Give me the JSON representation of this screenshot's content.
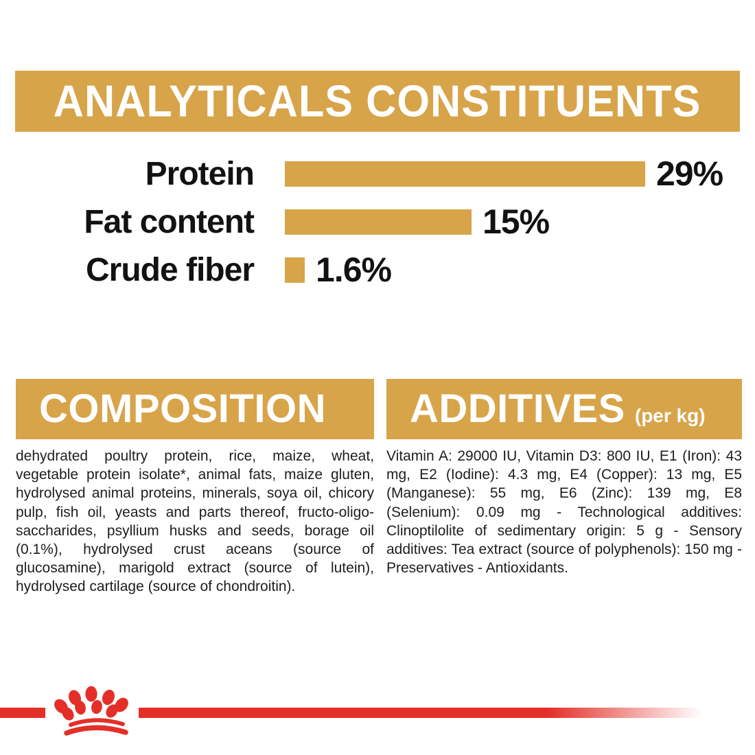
{
  "colors": {
    "gold": "#D7A44A",
    "red": "#E42F28",
    "ink": "#1C1C1C",
    "banner_text": "#FFFFFF"
  },
  "analyticals": {
    "title": "ANALYTICALS CONSTITUENTS"
  },
  "chart_data": {
    "type": "bar",
    "orientation": "horizontal",
    "title": "ANALYTICALS CONSTITUENTS",
    "categories": [
      "Protein",
      "Fat content",
      "Crude fiber"
    ],
    "values": [
      29,
      15,
      1.6
    ],
    "value_labels": [
      "29%",
      "15%",
      "1.6%"
    ],
    "xlim": [
      0,
      29
    ],
    "bar_color": "#D7A44A",
    "grid": false,
    "legend": false
  },
  "composition": {
    "title": "COMPOSITION",
    "body": "dehydrated poultry protein, rice, maize, wheat, vegetable protein isolate*, animal fats, maize gluten, hydrolysed animal proteins, minerals, soya oil, chicory pulp, fish oil, yeasts and parts thereof, fructo-oligo-saccharides, psyllium husks and seeds, borage oil (0.1%), hydrolysed crust aceans (source of glucosamine), marigold extract (source of lutein), hydrolysed cartilage (source of chondroitin)."
  },
  "additives": {
    "title": "ADDITIVES",
    "unit_note": "(per kg)",
    "body": "Vitamin A: 29000 IU, Vitamin D3: 800 IU, E1 (Iron): 43 mg, E2 (Iodine): 4.3 mg, E4 (Copper): 13 mg, E5 (Manganese): 55 mg, E6 (Zinc): 139 mg, E8 (Selenium): 0.09 mg - Technological additives: Clinoptilolite of sedimentary origin: 5 g - Sensory additives: Tea extract (source of polyphenols): 150 mg - Preservatives - Antioxidants.",
    "body_prefix": "Vitamin"
  },
  "footer": {
    "brand_icon": "royal-canin-crown-paw-logo"
  }
}
